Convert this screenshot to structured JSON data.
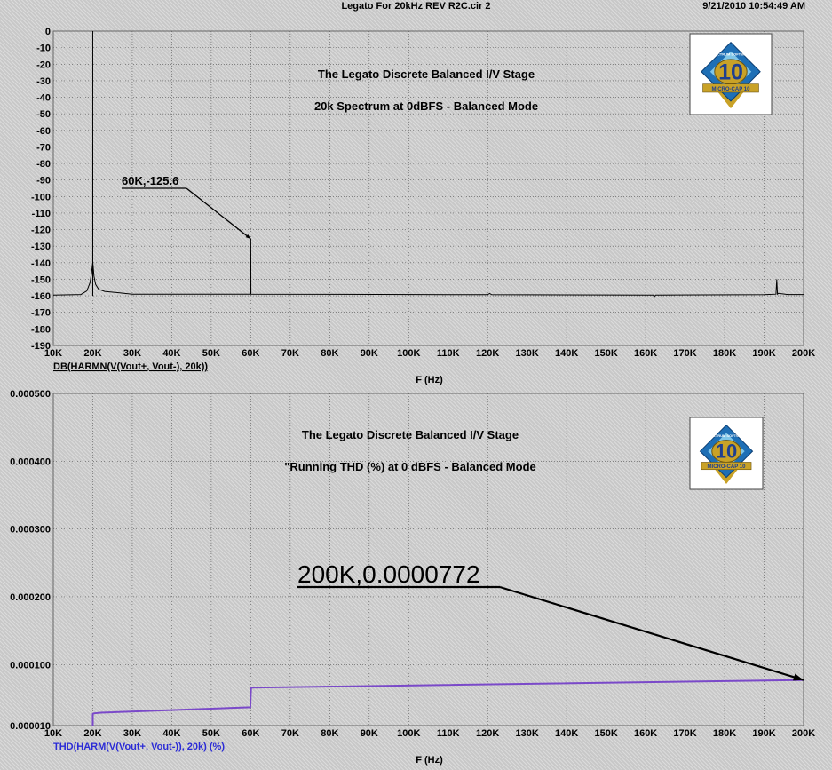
{
  "window": {
    "title": "Legato For 20kHz REV R2C.cir 2",
    "timestamp": "9/21/2010 10:54:49 AM"
  },
  "logo": {
    "number": "10",
    "ring_text": "SPECTRUM SOFTWARE",
    "ribbon_text": "MICRO-CAP 10",
    "colors": {
      "outer": "#1e6fb5",
      "inner": "#7fc6e8",
      "gold": "#c9a227"
    }
  },
  "chart_data": [
    {
      "type": "line",
      "title": "The Legato Discrete Balanced I/V Stage",
      "subtitle": "20k Spectrum at 0dBFS - Balanced Mode",
      "xlabel": "F (Hz)",
      "trace_label": "DB(HARMN(V(Vout+, Vout-), 20k))",
      "xlim": [
        10000,
        200000
      ],
      "ylim": [
        -190,
        0
      ],
      "x_ticks": [
        10000,
        20000,
        30000,
        40000,
        50000,
        60000,
        70000,
        80000,
        90000,
        100000,
        110000,
        120000,
        130000,
        140000,
        150000,
        160000,
        170000,
        180000,
        190000,
        200000
      ],
      "x_tick_labels": [
        "10K",
        "20K",
        "30K",
        "40K",
        "50K",
        "60K",
        "70K",
        "80K",
        "90K",
        "100K",
        "110K",
        "120K",
        "130K",
        "140K",
        "150K",
        "160K",
        "170K",
        "180K",
        "190K",
        "200K"
      ],
      "y_ticks": [
        0,
        -10,
        -20,
        -30,
        -40,
        -50,
        -60,
        -70,
        -80,
        -90,
        -100,
        -110,
        -120,
        -130,
        -140,
        -150,
        -160,
        -170,
        -180,
        -190
      ],
      "y_tick_labels": [
        "0",
        "-10",
        "-20",
        "-30",
        "-40",
        "-50",
        "-60",
        "-70",
        "-80",
        "-90",
        "-100",
        "-110",
        "-120",
        "-130",
        "-140",
        "-150",
        "-160",
        "-170",
        "-180",
        "-190"
      ],
      "grid": true,
      "series": [
        {
          "color": "#000000",
          "x": [
            10000,
            17000,
            18500,
            19300,
            19700,
            19900,
            20000,
            20100,
            20300,
            20700,
            21500,
            23000,
            26000,
            30000,
            59950,
            60000,
            60000,
            60050,
            120000,
            120500,
            121000,
            162000,
            162200,
            162500,
            190000,
            193000,
            193200,
            193400,
            193600,
            196000,
            200000
          ],
          "y": [
            -159.5,
            -159.2,
            -157,
            -152,
            -146,
            -142,
            -140,
            -142,
            -148,
            -153,
            -156,
            -157.3,
            -158,
            -159,
            -159,
            -159,
            -125.6,
            -159,
            -159.3,
            -158.6,
            -159.3,
            -159.5,
            -160.5,
            -159.5,
            -159.3,
            -159,
            -150,
            -159,
            -158.5,
            -159.2,
            -159.2
          ]
        }
      ],
      "spikes": [
        {
          "x": 20000,
          "y": 0
        },
        {
          "x": 20000,
          "y": -68
        }
      ],
      "annotations": [
        {
          "text": "60K,-125.6",
          "x": 60000,
          "y": -125.6
        }
      ]
    },
    {
      "type": "line",
      "title": "The Legato Discrete Balanced I/V Stage",
      "subtitle": "\"Running THD (%) at 0 dBFS - Balanced Mode",
      "xlabel": "F (Hz)",
      "trace_label": "THD(HARM(V(Vout+, Vout-)), 20k) (%)",
      "xlim": [
        10000,
        200000
      ],
      "ylim": [
        1e-05,
        0.0005
      ],
      "x_ticks": [
        10000,
        20000,
        30000,
        40000,
        50000,
        60000,
        70000,
        80000,
        90000,
        100000,
        110000,
        120000,
        130000,
        140000,
        150000,
        160000,
        170000,
        180000,
        190000,
        200000
      ],
      "x_tick_labels": [
        "10K",
        "20K",
        "30K",
        "40K",
        "50K",
        "60K",
        "70K",
        "80K",
        "90K",
        "100K",
        "110K",
        "120K",
        "130K",
        "140K",
        "150K",
        "160K",
        "170K",
        "180K",
        "190K",
        "200K"
      ],
      "y_ticks": [
        1e-05,
        0.0001,
        0.0002,
        0.0003,
        0.0004,
        0.0005
      ],
      "y_tick_labels": [
        "0.000010",
        "0.000100",
        "0.000200",
        "0.000300",
        "0.000400",
        "0.000500"
      ],
      "grid": true,
      "series": [
        {
          "color": "#7a49c9",
          "x": [
            20000,
            20000,
            20200,
            22000,
            59900,
            60000,
            60100,
            200000
          ],
          "y": [
            1e-05,
            2.7e-05,
            2.8e-05,
            2.9e-05,
            3.7e-05,
            5.6e-05,
            6.6e-05,
            7.72e-05
          ]
        }
      ],
      "annotations": [
        {
          "text": "200K,0.0000772",
          "x": 200000,
          "y": 7.72e-05
        }
      ]
    }
  ]
}
